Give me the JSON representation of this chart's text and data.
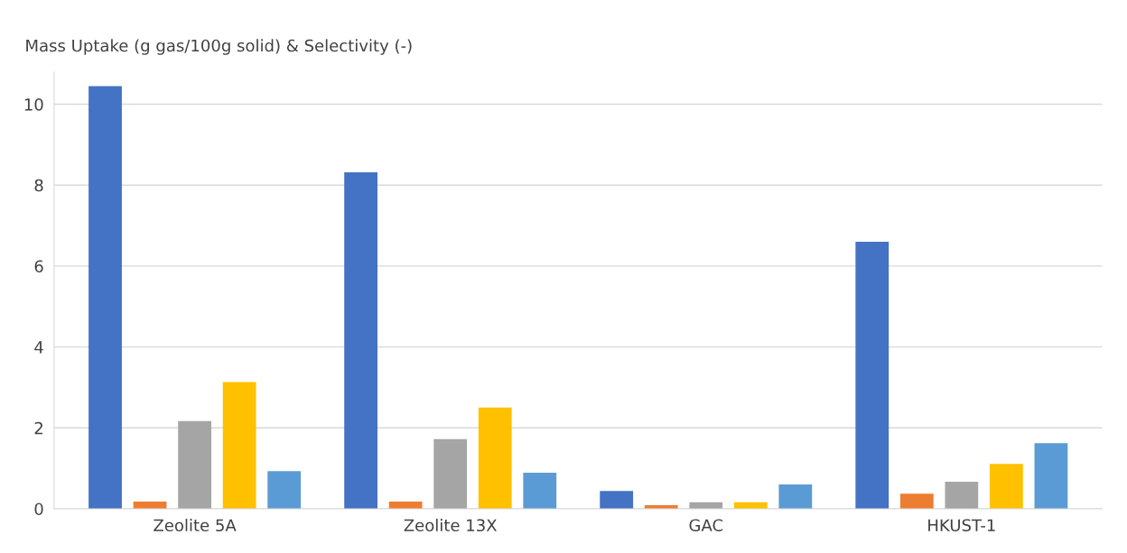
{
  "chart_data": {
    "type": "bar",
    "ylabel": "Mass Uptake (g gas/100g solid) & Selectivity (-)",
    "categories": [
      "Zeolite 5A",
      "Zeolite 13X",
      "GAC",
      "HKUST-1"
    ],
    "series": [
      {
        "color": "#4472c4",
        "values": [
          10.45,
          8.32,
          0.44,
          6.6
        ]
      },
      {
        "color": "#ed7d31",
        "values": [
          0.18,
          0.18,
          0.09,
          0.37
        ]
      },
      {
        "color": "#a5a5a5",
        "values": [
          2.17,
          1.72,
          0.16,
          0.67
        ]
      },
      {
        "color": "#ffc000",
        "values": [
          3.13,
          2.5,
          0.16,
          1.11
        ]
      },
      {
        "color": "#5b9bd5",
        "values": [
          0.93,
          0.89,
          0.6,
          1.62
        ]
      }
    ],
    "ylim": [
      0,
      10.8
    ],
    "yticks": [
      0,
      2,
      4,
      6,
      8,
      10
    ],
    "grid": "y",
    "legend": false
  }
}
